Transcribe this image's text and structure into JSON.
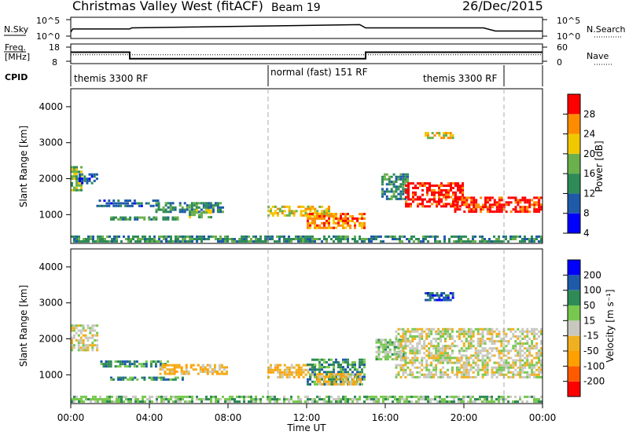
{
  "header": {
    "title": "Christmas Valley West (fitACF)",
    "beam": "Beam 19",
    "date": "26/Dec/2015"
  },
  "noise_panel": {
    "left_label": "N.Sky",
    "left_ticks": [
      "10^5",
      "10^0"
    ],
    "right_label": "N.Search",
    "right_ticks": [
      "10^5",
      "10^0"
    ]
  },
  "freq_panel": {
    "left_label_1": "Freq.",
    "left_label_2": "[MHz]",
    "left_ticks": [
      "18",
      "8"
    ],
    "right_label": "Nave",
    "right_ticks": [
      "60",
      "0"
    ]
  },
  "cpid_panel": {
    "label": "CPID",
    "modes": [
      "themis 3300 RF",
      "normal (fast) 151 RF",
      "themis 3300 RF"
    ]
  },
  "chart_data": [
    {
      "type": "line",
      "name": "noise",
      "x_unit": "hours UT",
      "series": [
        {
          "name": "N.Sky",
          "x": [
            0,
            0.1,
            3.0,
            3.1,
            14.7,
            15.0,
            21.0,
            21.6,
            24
          ],
          "y_level": [
            0.3,
            0.45,
            0.45,
            0.5,
            0.65,
            0.5,
            0.5,
            0.35,
            0.35
          ]
        }
      ]
    },
    {
      "type": "line",
      "name": "frequency and nave",
      "x_unit": "hours UT",
      "xlim": [
        0,
        24
      ],
      "ylim": [
        8,
        18
      ],
      "series": [
        {
          "name": "Freq.",
          "x": [
            0,
            3.0,
            3.0,
            15.0,
            15.0,
            24
          ],
          "y": [
            13.8,
            13.8,
            10.5,
            10.5,
            13.8,
            13.8
          ]
        },
        {
          "name": "Nave",
          "x": [
            0,
            24
          ],
          "y": [
            12.5,
            12.5
          ]
        }
      ]
    },
    {
      "type": "heatmap",
      "name": "power",
      "xlabel": "",
      "ylabel": "Slant Range [km]",
      "xlim": [
        0,
        24
      ],
      "ylim": [
        200,
        4500
      ],
      "yticks": [
        "1000",
        "2000",
        "3000",
        "4000"
      ],
      "colorbar_label": "Power [dB]",
      "colorbar_ticks": [
        "28",
        "24",
        "20",
        "16",
        "12",
        "8",
        "4"
      ],
      "colors": [
        "#0000ff",
        "#1e5aa8",
        "#2e8b57",
        "#6ab04c",
        "#f0c800",
        "#ff8c00",
        "#ff0000"
      ],
      "regions": [
        {
          "t": [
            0.0,
            0.6
          ],
          "r": [
            1650,
            2350
          ],
          "level": 3
        },
        {
          "t": [
            0.4,
            1.4
          ],
          "r": [
            1850,
            2150
          ],
          "level": 1
        },
        {
          "t": [
            1.3,
            4.5
          ],
          "r": [
            1200,
            1420
          ],
          "level": 1
        },
        {
          "t": [
            4.3,
            7.8
          ],
          "r": [
            1050,
            1350
          ],
          "level": 2
        },
        {
          "t": [
            6.0,
            7.2
          ],
          "r": [
            900,
            1150
          ],
          "level": 3
        },
        {
          "t": [
            2.0,
            5.5
          ],
          "r": [
            850,
            950
          ],
          "level": 2
        },
        {
          "t": [
            10.0,
            13.2
          ],
          "r": [
            950,
            1250
          ],
          "level": 4
        },
        {
          "t": [
            12.0,
            15.0
          ],
          "r": [
            600,
            1050
          ],
          "level": 5
        },
        {
          "t": [
            15.8,
            17.2
          ],
          "r": [
            1400,
            2150
          ],
          "level": 2
        },
        {
          "t": [
            17.0,
            20.0
          ],
          "r": [
            1200,
            1900
          ],
          "level": 6
        },
        {
          "t": [
            19.5,
            24.0
          ],
          "r": [
            1050,
            1500
          ],
          "level": 6
        },
        {
          "t": [
            18.0,
            19.5
          ],
          "r": [
            3100,
            3300
          ],
          "level": 4
        },
        {
          "t": [
            0.0,
            24.0
          ],
          "r": [
            220,
            420
          ],
          "level": 2
        }
      ]
    },
    {
      "type": "heatmap",
      "name": "velocity",
      "xlabel": "Time UT",
      "ylabel": "Slant Range [km]",
      "xlim": [
        0,
        24
      ],
      "ylim": [
        200,
        4500
      ],
      "xticks": [
        "00:00",
        "04:00",
        "08:00",
        "12:00",
        "16:00",
        "20:00",
        "00:00"
      ],
      "yticks": [
        "1000",
        "2000",
        "3000",
        "4000"
      ],
      "colorbar_label": "Velocity [m s⁻¹]",
      "colorbar_ticks": [
        "200",
        "100",
        "50",
        "15",
        "-15",
        "-50",
        "-100",
        "-200"
      ],
      "colors": [
        "#ff0000",
        "#ff5a00",
        "#ffa000",
        "#f0b020",
        "#c8c8c0",
        "#78c850",
        "#2e8b57",
        "#1e5aa8",
        "#0000ff"
      ],
      "regions": [
        {
          "t": [
            0.0,
            1.4
          ],
          "r": [
            1650,
            2400
          ],
          "level": 4
        },
        {
          "t": [
            1.5,
            5.0
          ],
          "r": [
            1200,
            1400
          ],
          "level": 6
        },
        {
          "t": [
            4.5,
            8.0
          ],
          "r": [
            1000,
            1300
          ],
          "level": 3
        },
        {
          "t": [
            2.0,
            6.0
          ],
          "r": [
            850,
            950
          ],
          "level": 6
        },
        {
          "t": [
            10.0,
            12.5
          ],
          "r": [
            900,
            1300
          ],
          "level": 3
        },
        {
          "t": [
            12.0,
            15.0
          ],
          "r": [
            700,
            1450
          ],
          "level": 6
        },
        {
          "t": [
            12.5,
            14.8
          ],
          "r": [
            700,
            1050
          ],
          "level": 3
        },
        {
          "t": [
            15.5,
            17.0
          ],
          "r": [
            1400,
            2000
          ],
          "level": 5
        },
        {
          "t": [
            16.5,
            24.0
          ],
          "r": [
            900,
            2300
          ],
          "level": 4
        },
        {
          "t": [
            18.0,
            19.5
          ],
          "r": [
            3050,
            3300
          ],
          "level": 7
        },
        {
          "t": [
            0.0,
            24.0
          ],
          "r": [
            220,
            420
          ],
          "level": 5
        }
      ]
    }
  ]
}
